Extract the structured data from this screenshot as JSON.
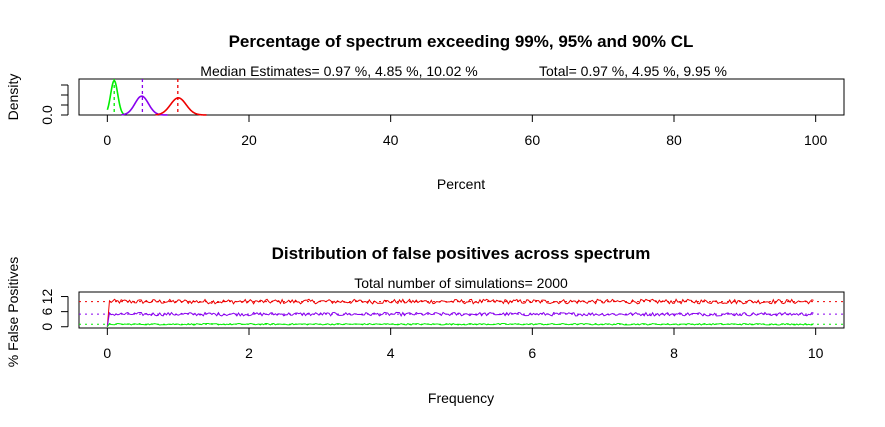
{
  "chart_data": [
    {
      "type": "line",
      "title": "Percentage of spectrum exceeding 99%, 95% and 90% CL",
      "subtitle_left": "Median Estimates= 0.97 %, 4.85 %, 10.02 %",
      "subtitle_right": "Total= 0.97 %, 4.95 %, 9.95 %",
      "xlabel": "Percent",
      "ylabel": "Density",
      "xlim": [
        -4,
        104
      ],
      "ylim": [
        0,
        1
      ],
      "xticks": [
        0,
        20,
        40,
        60,
        80,
        100
      ],
      "xtick_labels": [
        "0",
        "20",
        "40",
        "60",
        "80",
        "100"
      ],
      "ytick_labels": [
        "0.0"
      ],
      "series": [
        {
          "color": "#00ee00",
          "center": 0.97,
          "sd": 0.5,
          "peak": 1.0,
          "x_range": [
            0,
            2.4
          ]
        },
        {
          "color": "#8800ee",
          "center": 4.85,
          "sd": 0.95,
          "peak": 0.55,
          "x_range": [
            2,
            8.5
          ]
        },
        {
          "color": "#ee0000",
          "center": 10.02,
          "sd": 1.1,
          "peak": 0.5,
          "x_range": [
            6.8,
            14
          ]
        }
      ],
      "vlines": [
        {
          "x": 0.97,
          "color": "#00ee00"
        },
        {
          "x": 4.95,
          "color": "#8800ee"
        },
        {
          "x": 9.95,
          "color": "#ee0000"
        }
      ]
    },
    {
      "type": "line",
      "title": "Distribution of false positives across spectrum",
      "subtitle": "Total number of simulations= 2000",
      "xlabel": "Frequency",
      "ylabel": "% False Positives",
      "xlim": [
        -0.4,
        10.4
      ],
      "ylim": [
        -0.5,
        13.8
      ],
      "xticks": [
        0,
        2,
        4,
        6,
        8,
        10
      ],
      "xtick_labels": [
        "0",
        "2",
        "4",
        "6",
        "8",
        "10"
      ],
      "yticks": [
        0,
        6,
        12
      ],
      "ytick_labels": [
        "0",
        "6",
        "12"
      ],
      "series": [
        {
          "color": "#ee0000",
          "mean": 10,
          "noise": 0.9
        },
        {
          "color": "#8800ee",
          "mean": 5,
          "noise": 0.7
        },
        {
          "color": "#00ee00",
          "mean": 1,
          "noise": 0.3
        }
      ],
      "hlines": [
        {
          "y": 10,
          "color": "#ee0000"
        },
        {
          "y": 5,
          "color": "#8800ee"
        },
        {
          "y": 1,
          "color": "#00ee00"
        }
      ]
    }
  ]
}
